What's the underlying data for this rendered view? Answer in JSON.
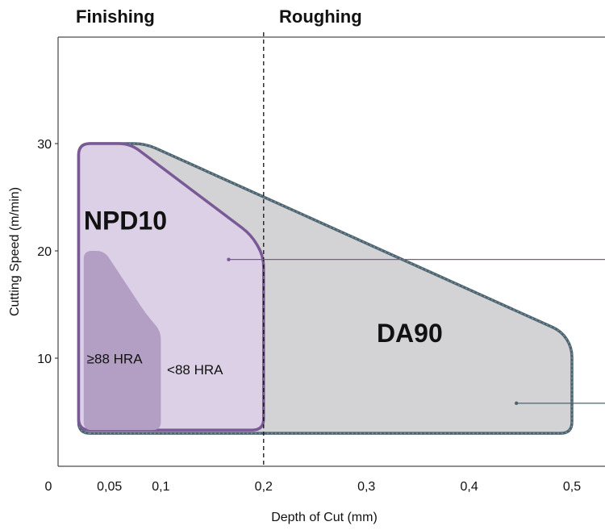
{
  "chart_data": {
    "type": "area",
    "xlabel": "Depth of Cut (mm)",
    "ylabel": "Cutting Speed (m/min)",
    "xlim": [
      0,
      0.53
    ],
    "ylim": [
      0,
      40
    ],
    "x_ticks": [
      {
        "value": 0,
        "label": "0"
      },
      {
        "value": 0.05,
        "label": "0,05"
      },
      {
        "value": 0.1,
        "label": "0,1"
      },
      {
        "value": 0.2,
        "label": "0,2"
      },
      {
        "value": 0.3,
        "label": "0,3"
      },
      {
        "value": 0.4,
        "label": "0,4"
      },
      {
        "value": 0.5,
        "label": "0,5"
      }
    ],
    "y_ticks": [
      {
        "value": 10,
        "label": "10"
      },
      {
        "value": 20,
        "label": "20"
      },
      {
        "value": 30,
        "label": "30"
      }
    ],
    "divider_x": 0.2,
    "region_labels": {
      "left": "Finishing",
      "right": "Roughing"
    },
    "series": [
      {
        "name": "DA90",
        "color": "#d3d3d6",
        "edge_color": "#4d6470",
        "label_at": [
          0.31,
          11.5
        ],
        "points": [
          [
            0.02,
            3
          ],
          [
            0.02,
            30
          ],
          [
            0.085,
            30
          ],
          [
            0.49,
            12.5
          ],
          [
            0.5,
            11
          ],
          [
            0.5,
            3
          ]
        ]
      },
      {
        "name": "NPD10",
        "color": "#dcd0e6",
        "edge_color": "#7a5a96",
        "label_at": [
          0.025,
          22
        ],
        "points": [
          [
            0.02,
            3.3
          ],
          [
            0.02,
            30
          ],
          [
            0.07,
            30
          ],
          [
            0.188,
            21.5
          ],
          [
            0.2,
            19.5
          ],
          [
            0.2,
            3.3
          ]
        ]
      },
      {
        "name": "≥88 HRA",
        "color": "#b39fc4",
        "label_at": [
          0.028,
          9.5
        ],
        "points": [
          [
            0.025,
            3.3
          ],
          [
            0.025,
            20
          ],
          [
            0.045,
            20
          ],
          [
            0.085,
            14.2
          ],
          [
            0.1,
            12.5
          ],
          [
            0.1,
            3.3
          ]
        ]
      }
    ],
    "annotations": [
      {
        "text": "<88 HRA",
        "x": 0.106,
        "y": 8.5
      }
    ],
    "leader_lines": [
      {
        "color": "#7a5a96",
        "from": [
          0.166,
          19.2
        ]
      },
      {
        "color": "#4d6470",
        "from": [
          0.446,
          5.8
        ]
      }
    ]
  }
}
